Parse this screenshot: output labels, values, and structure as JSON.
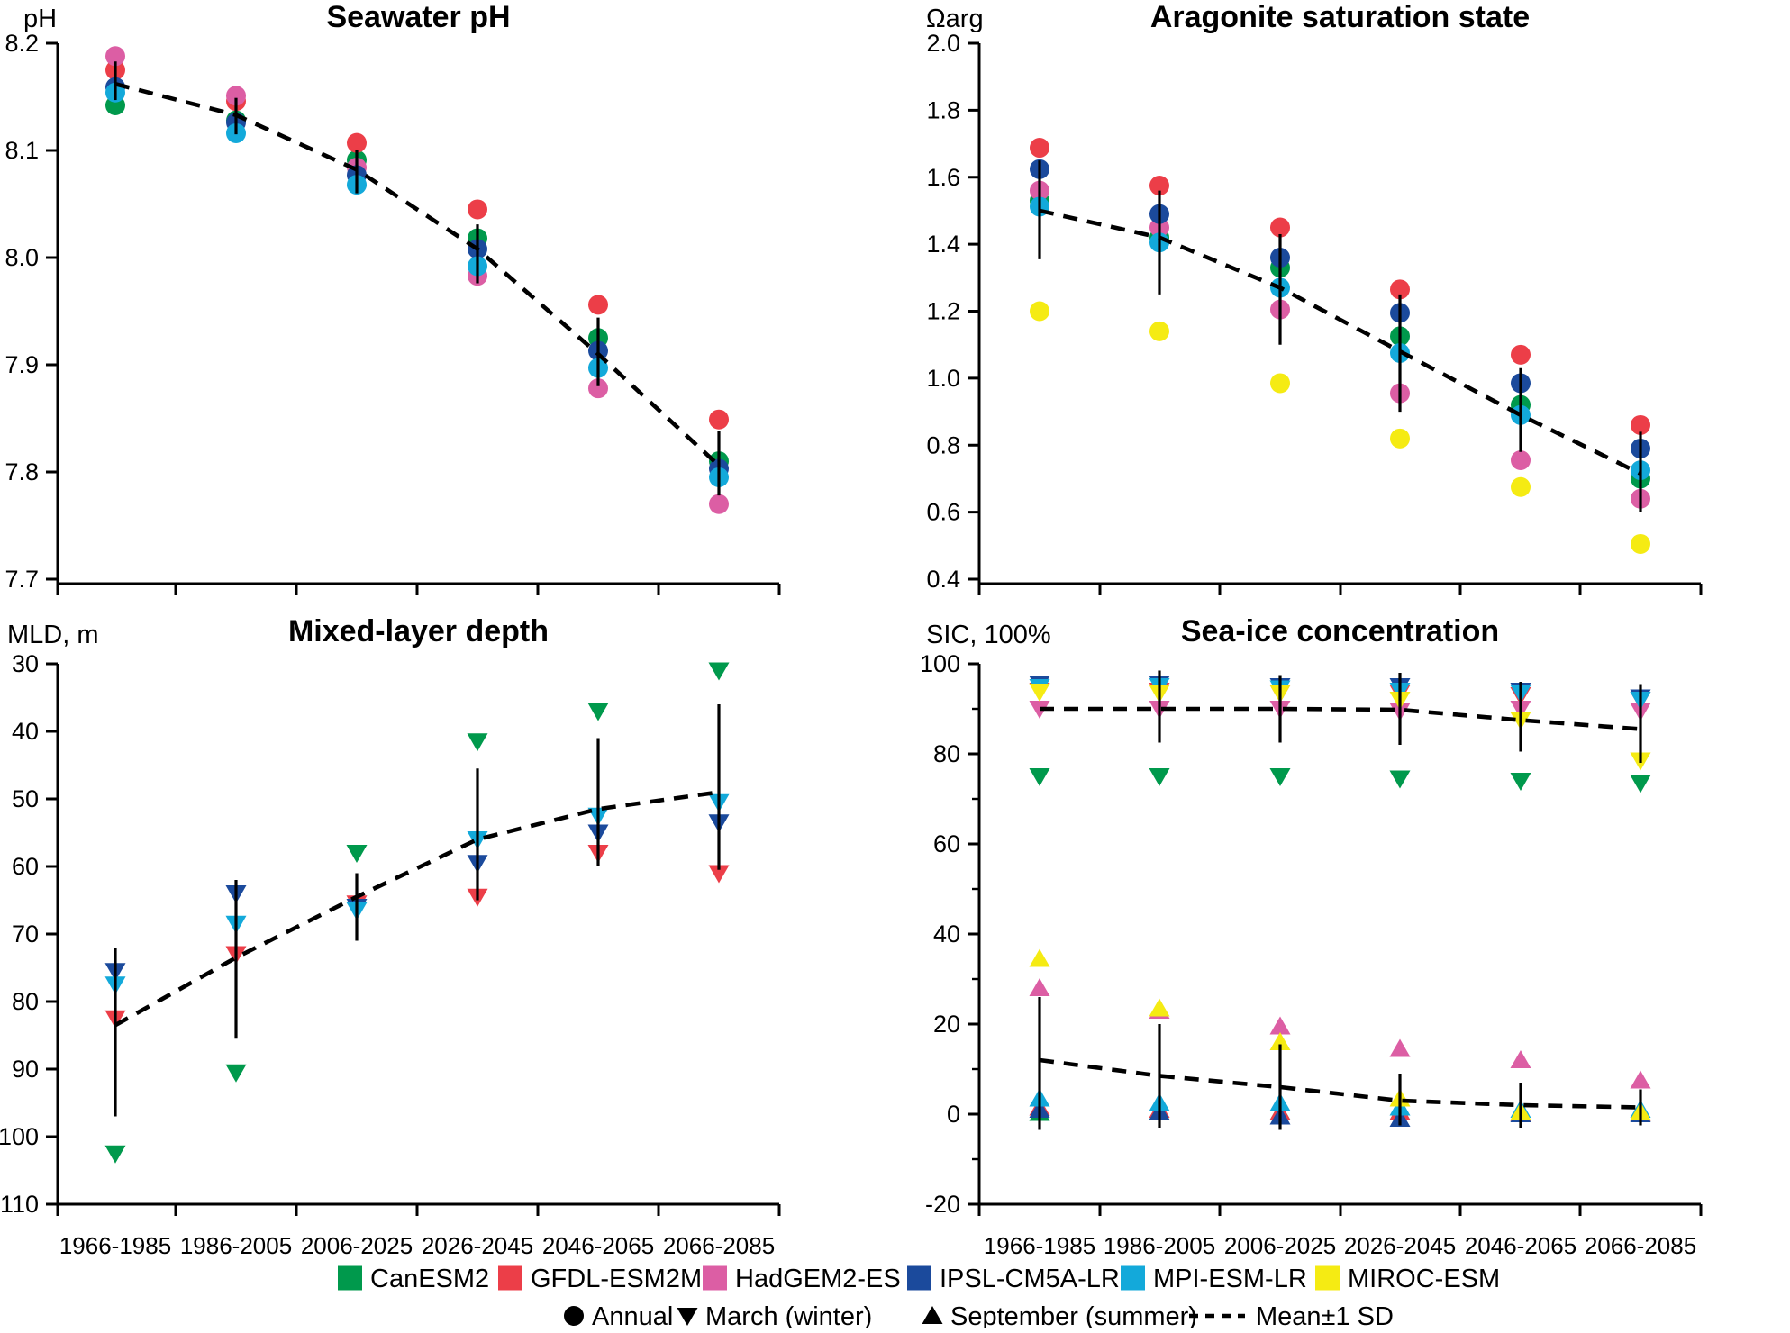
{
  "figure_title": "Projected ocean changes by model and period",
  "x_categories": [
    "1966-1985",
    "1986-2005",
    "2006-2025",
    "2026-2045",
    "2046-2065",
    "2066-2085"
  ],
  "colors": {
    "CanESM2": "#00994C",
    "GFDL-ESM2M": "#EC3E48",
    "HadGEM2-ES": "#DC5EA4",
    "IPSL-CM5A-LR": "#1B4A9C",
    "MPI-ESM-LR": "#13A9DA",
    "MIROC-ESM": "#F5EB13",
    "axis": "#000000",
    "mean_line": "#000000"
  },
  "legend": {
    "models": [
      "CanESM2",
      "GFDL-ESM2M",
      "HadGEM2-ES",
      "IPSL-CM5A-LR",
      "MPI-ESM-LR",
      "MIROC-ESM"
    ],
    "seasons": [
      {
        "label": "Annual",
        "marker": "circle"
      },
      {
        "label": "March (winter)",
        "marker": "triangle-down"
      },
      {
        "label": "September (summer)",
        "marker": "triangle-up"
      }
    ],
    "mean_label": "Mean±1 SD"
  },
  "chart_data": [
    {
      "id": "ph",
      "type": "scatter",
      "position": "top-left",
      "title": "Seawater pH",
      "ylabel": "pH",
      "ylim": [
        7.7,
        8.2
      ],
      "inverted": false,
      "yticks": [
        8.2,
        8.1,
        8.0,
        7.9,
        7.8,
        7.7
      ],
      "ytick_labels": [
        "8.2",
        "8.1",
        "8.0",
        "7.9",
        "7.8",
        "7.7"
      ],
      "yticks_minor": [],
      "show_x_labels": false,
      "groups": [
        {
          "season": "Annual",
          "marker": "circle",
          "series": [
            {
              "name": "CanESM2",
              "values": [
                8.142,
                8.128,
                8.091,
                8.018,
                7.925,
                7.81
              ]
            },
            {
              "name": "GFDL-ESM2M",
              "values": [
                8.175,
                8.146,
                8.107,
                8.045,
                7.956,
                7.849
              ]
            },
            {
              "name": "HadGEM2-ES",
              "values": [
                8.188,
                8.151,
                8.084,
                7.983,
                7.878,
                7.77
              ]
            },
            {
              "name": "IPSL-CM5A-LR",
              "values": [
                8.159,
                8.126,
                8.077,
                8.008,
                7.913,
                7.803
              ]
            },
            {
              "name": "MPI-ESM-LR",
              "values": [
                8.154,
                8.116,
                8.068,
                7.992,
                7.897,
                7.795
              ]
            }
          ],
          "mean": [
            8.162,
            8.133,
            8.082,
            8.008,
            7.91,
            7.806
          ],
          "err_lo": [
            8.147,
            8.115,
            8.06,
            7.976,
            7.88,
            7.778
          ],
          "err_hi": [
            8.183,
            8.149,
            8.1,
            8.031,
            7.944,
            7.838
          ]
        }
      ]
    },
    {
      "id": "omega",
      "type": "scatter",
      "position": "top-right",
      "title": "Aragonite saturation state",
      "ylabel": "Ωarg",
      "ylim": [
        0.4,
        2.0
      ],
      "inverted": false,
      "yticks": [
        2.0,
        1.8,
        1.6,
        1.4,
        1.2,
        1.0,
        0.8,
        0.6,
        0.4
      ],
      "ytick_labels": [
        "2.0",
        "1.8",
        "1.6",
        "1.4",
        "1.2",
        "1.0",
        "0.8",
        "0.6",
        "0.4"
      ],
      "yticks_minor": [],
      "show_x_labels": false,
      "groups": [
        {
          "season": "Annual",
          "marker": "circle",
          "series": [
            {
              "name": "CanESM2",
              "values": [
                1.53,
                1.42,
                1.33,
                1.125,
                0.92,
                0.7
              ]
            },
            {
              "name": "GFDL-ESM2M",
              "values": [
                1.688,
                1.575,
                1.45,
                1.265,
                1.07,
                0.86
              ]
            },
            {
              "name": "HadGEM2-ES",
              "values": [
                1.56,
                1.45,
                1.205,
                0.955,
                0.755,
                0.64
              ]
            },
            {
              "name": "IPSL-CM5A-LR",
              "values": [
                1.624,
                1.49,
                1.36,
                1.195,
                0.985,
                0.79
              ]
            },
            {
              "name": "MPI-ESM-LR",
              "values": [
                1.512,
                1.405,
                1.27,
                1.075,
                0.89,
                0.725
              ]
            },
            {
              "name": "MIROC-ESM",
              "values": [
                1.2,
                1.14,
                0.985,
                0.82,
                0.675,
                0.505
              ]
            }
          ],
          "mean": [
            1.5,
            1.42,
            1.27,
            1.08,
            0.89,
            0.715
          ],
          "err_lo": [
            1.355,
            1.25,
            1.1,
            0.9,
            0.78,
            0.6
          ],
          "err_hi": [
            1.65,
            1.56,
            1.43,
            1.25,
            1.03,
            0.84
          ]
        }
      ]
    },
    {
      "id": "mld",
      "type": "scatter",
      "position": "bottom-left",
      "title": "Mixed-layer depth",
      "ylabel": "MLD, m",
      "ylim": [
        30,
        110
      ],
      "inverted": true,
      "yticks": [
        30,
        40,
        50,
        60,
        70,
        80,
        90,
        100,
        110
      ],
      "ytick_labels": [
        "30",
        "40",
        "50",
        "60",
        "70",
        "80",
        "90",
        "100",
        "110"
      ],
      "yticks_minor": [],
      "show_x_labels": true,
      "groups": [
        {
          "season": "March (winter)",
          "marker": "triangle-down",
          "series": [
            {
              "name": "CanESM2",
              "values": [
                102.5,
                90.5,
                58.0,
                41.5,
                37.0,
                31.0
              ]
            },
            {
              "name": "GFDL-ESM2M",
              "values": [
                82.5,
                73.0,
                65.5,
                64.5,
                58.0,
                61.0
              ]
            },
            {
              "name": "IPSL-CM5A-LR",
              "values": [
                75.5,
                64.0,
                66.0,
                59.5,
                55.0,
                53.5
              ]
            },
            {
              "name": "MPI-ESM-LR",
              "values": [
                77.5,
                68.5,
                66.5,
                56.0,
                52.5,
                50.5
              ]
            }
          ],
          "mean": [
            83.5,
            73.5,
            64.5,
            56.0,
            51.5,
            49.0
          ],
          "err_lo": [
            72.0,
            62.0,
            61.0,
            45.5,
            41.0,
            36.0
          ],
          "err_hi": [
            97.0,
            85.5,
            71.0,
            65.0,
            60.0,
            60.5
          ]
        }
      ]
    },
    {
      "id": "sic",
      "type": "scatter",
      "position": "bottom-right",
      "title": "Sea-ice concentration",
      "ylabel": "SIC, 100%",
      "ylim": [
        -20,
        100
      ],
      "inverted": false,
      "yticks": [
        100,
        80,
        60,
        40,
        20,
        0,
        -20
      ],
      "ytick_labels": [
        "100",
        "80",
        "60",
        "40",
        "20",
        "0",
        "-20"
      ],
      "yticks_minor": [
        90,
        70,
        50,
        30,
        10,
        -10
      ],
      "show_x_labels": true,
      "groups": [
        {
          "season": "March (winter)",
          "marker": "triangle-down",
          "series": [
            {
              "name": "CanESM2",
              "values": [
                75.0,
                75.0,
                75.0,
                74.5,
                74.0,
                73.5
              ]
            },
            {
              "name": "GFDL-ESM2M",
              "values": [
                94.0,
                94.0,
                93.5,
                93.5,
                93.0,
                92.0
              ]
            },
            {
              "name": "HadGEM2-ES",
              "values": [
                90.0,
                90.0,
                90.0,
                89.5,
                90.0,
                89.5
              ]
            },
            {
              "name": "IPSL-CM5A-LR",
              "values": [
                95.5,
                95.5,
                95.0,
                95.0,
                94.0,
                92.5
              ]
            },
            {
              "name": "MPI-ESM-LR",
              "values": [
                94.8,
                95.0,
                94.5,
                94.0,
                93.5,
                92.0
              ]
            },
            {
              "name": "MIROC-ESM",
              "values": [
                93.8,
                93.5,
                93.5,
                92.0,
                87.5,
                78.5
              ]
            }
          ],
          "mean": [
            90.0,
            90.0,
            90.0,
            89.8,
            87.5,
            85.5
          ],
          "err_lo": [
            null,
            82.5,
            82.5,
            82.0,
            80.5,
            78.0
          ],
          "err_hi": [
            null,
            98.5,
            97.5,
            98.0,
            96.0,
            95.5
          ]
        },
        {
          "season": "September (summer)",
          "marker": "triangle-up",
          "series": [
            {
              "name": "CanESM2",
              "values": [
                0.3,
                0.5,
                0.5,
                0.5,
                0.3,
                0.3
              ]
            },
            {
              "name": "GFDL-ESM2M",
              "values": [
                1.5,
                1.0,
                0.5,
                0.5,
                0.3,
                0.3
              ]
            },
            {
              "name": "HadGEM2-ES",
              "values": [
                28.0,
                23.0,
                19.5,
                14.5,
                12.0,
                7.5
              ]
            },
            {
              "name": "IPSL-CM5A-LR",
              "values": [
                1.0,
                0.5,
                -0.5,
                -1.0,
                0.0,
                0.0
              ]
            },
            {
              "name": "MPI-ESM-LR",
              "values": [
                3.5,
                2.5,
                2.5,
                1.5,
                1.0,
                1.0
              ]
            },
            {
              "name": "MIROC-ESM",
              "values": [
                34.5,
                23.5,
                16.0,
                3.5,
                0.5,
                0.5
              ]
            }
          ],
          "mean": [
            12.0,
            8.5,
            6.0,
            3.0,
            2.0,
            1.5
          ],
          "err_lo": [
            -3.5,
            -3.0,
            -3.5,
            -2.5,
            -3.0,
            -2.5
          ],
          "err_hi": [
            26.0,
            20.0,
            15.5,
            9.0,
            7.0,
            5.5
          ]
        }
      ]
    }
  ]
}
